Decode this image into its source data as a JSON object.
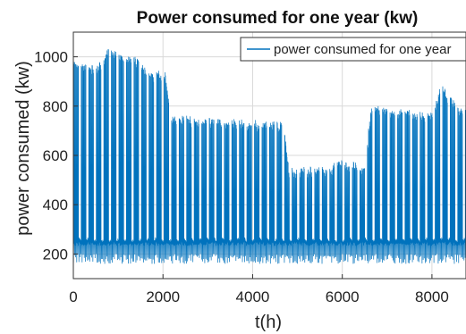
{
  "chart_data": {
    "type": "line",
    "title": "Power consumed for one year (kw)",
    "xlabel": "t(h)",
    "ylabel": "power consumed (kw)",
    "xlim": [
      0,
      8760
    ],
    "ylim": [
      100,
      1100
    ],
    "xticks": [
      0,
      2000,
      4000,
      6000,
      8000
    ],
    "yticks": [
      200,
      400,
      600,
      800,
      1000
    ],
    "grid": true,
    "legend_position": "top-right",
    "series": [
      {
        "name": "power consumed for one year",
        "color": "#0072BD",
        "base_value": 250,
        "min_value": 160,
        "daily_peaks": {
          "x": [
            0,
            500,
            800,
            1000,
            1300,
            1700,
            2050,
            2200,
            3000,
            4000,
            4700,
            4800,
            5600,
            6000,
            6500,
            6650,
            7500,
            8000,
            8200,
            8600,
            8760
          ],
          "y": [
            980,
            950,
            1030,
            1000,
            1000,
            930,
            930,
            750,
            740,
            730,
            720,
            540,
            540,
            570,
            550,
            800,
            770,
            760,
            880,
            780,
            770
          ]
        }
      }
    ]
  }
}
